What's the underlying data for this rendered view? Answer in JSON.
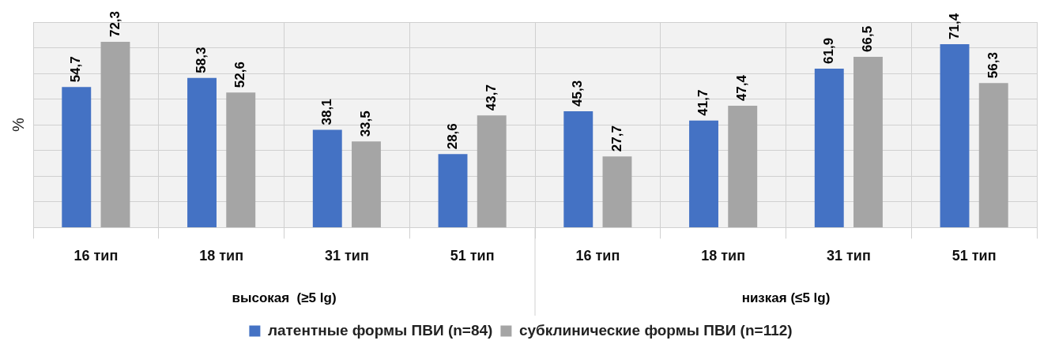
{
  "chart_data": {
    "type": "bar",
    "ylabel": "%",
    "categories": [
      "16 тип",
      "18 тип",
      "31 тип",
      "51 тип",
      "16 тип",
      "18 тип",
      "31 тип",
      "51 тип"
    ],
    "annotations": [
      "высокая  (≥5 lg)",
      "низкая (≤5 lg)"
    ],
    "series": [
      {
        "name": "латентные формы ПВИ (n=84)",
        "color": "#4472c4",
        "values": [
          54.7,
          58.3,
          38.1,
          28.6,
          45.3,
          41.7,
          61.9,
          71.4
        ],
        "value_labels": [
          "54,7",
          "58,3",
          "38,1",
          "28,6",
          "45,3",
          "41,7",
          "61,9",
          "71,4"
        ]
      },
      {
        "name": "субклинические формы ПВИ (n=112)",
        "color": "#a5a5a5",
        "values": [
          72.3,
          52.6,
          33.5,
          43.7,
          27.7,
          47.4,
          66.5,
          56.3
        ],
        "value_labels": [
          "72,3",
          "52,6",
          "33,5",
          "43,7",
          "27,7",
          "47,4",
          "66,5",
          "56,3"
        ]
      }
    ],
    "ylim": [
      0,
      80
    ],
    "yticks": [
      {
        "value": 0,
        "label": null
      },
      {
        "value": 10,
        "label": null
      },
      {
        "value": 20,
        "label": null
      },
      {
        "value": 30,
        "label": null
      },
      {
        "value": 40,
        "label": null
      },
      {
        "value": 50,
        "label": null
      },
      {
        "value": 60,
        "label": null
      },
      {
        "value": 70,
        "label": null
      },
      {
        "value": 80,
        "label": null
      }
    ],
    "tick_labels": "x",
    "grid": true,
    "legend": "bottom"
  }
}
